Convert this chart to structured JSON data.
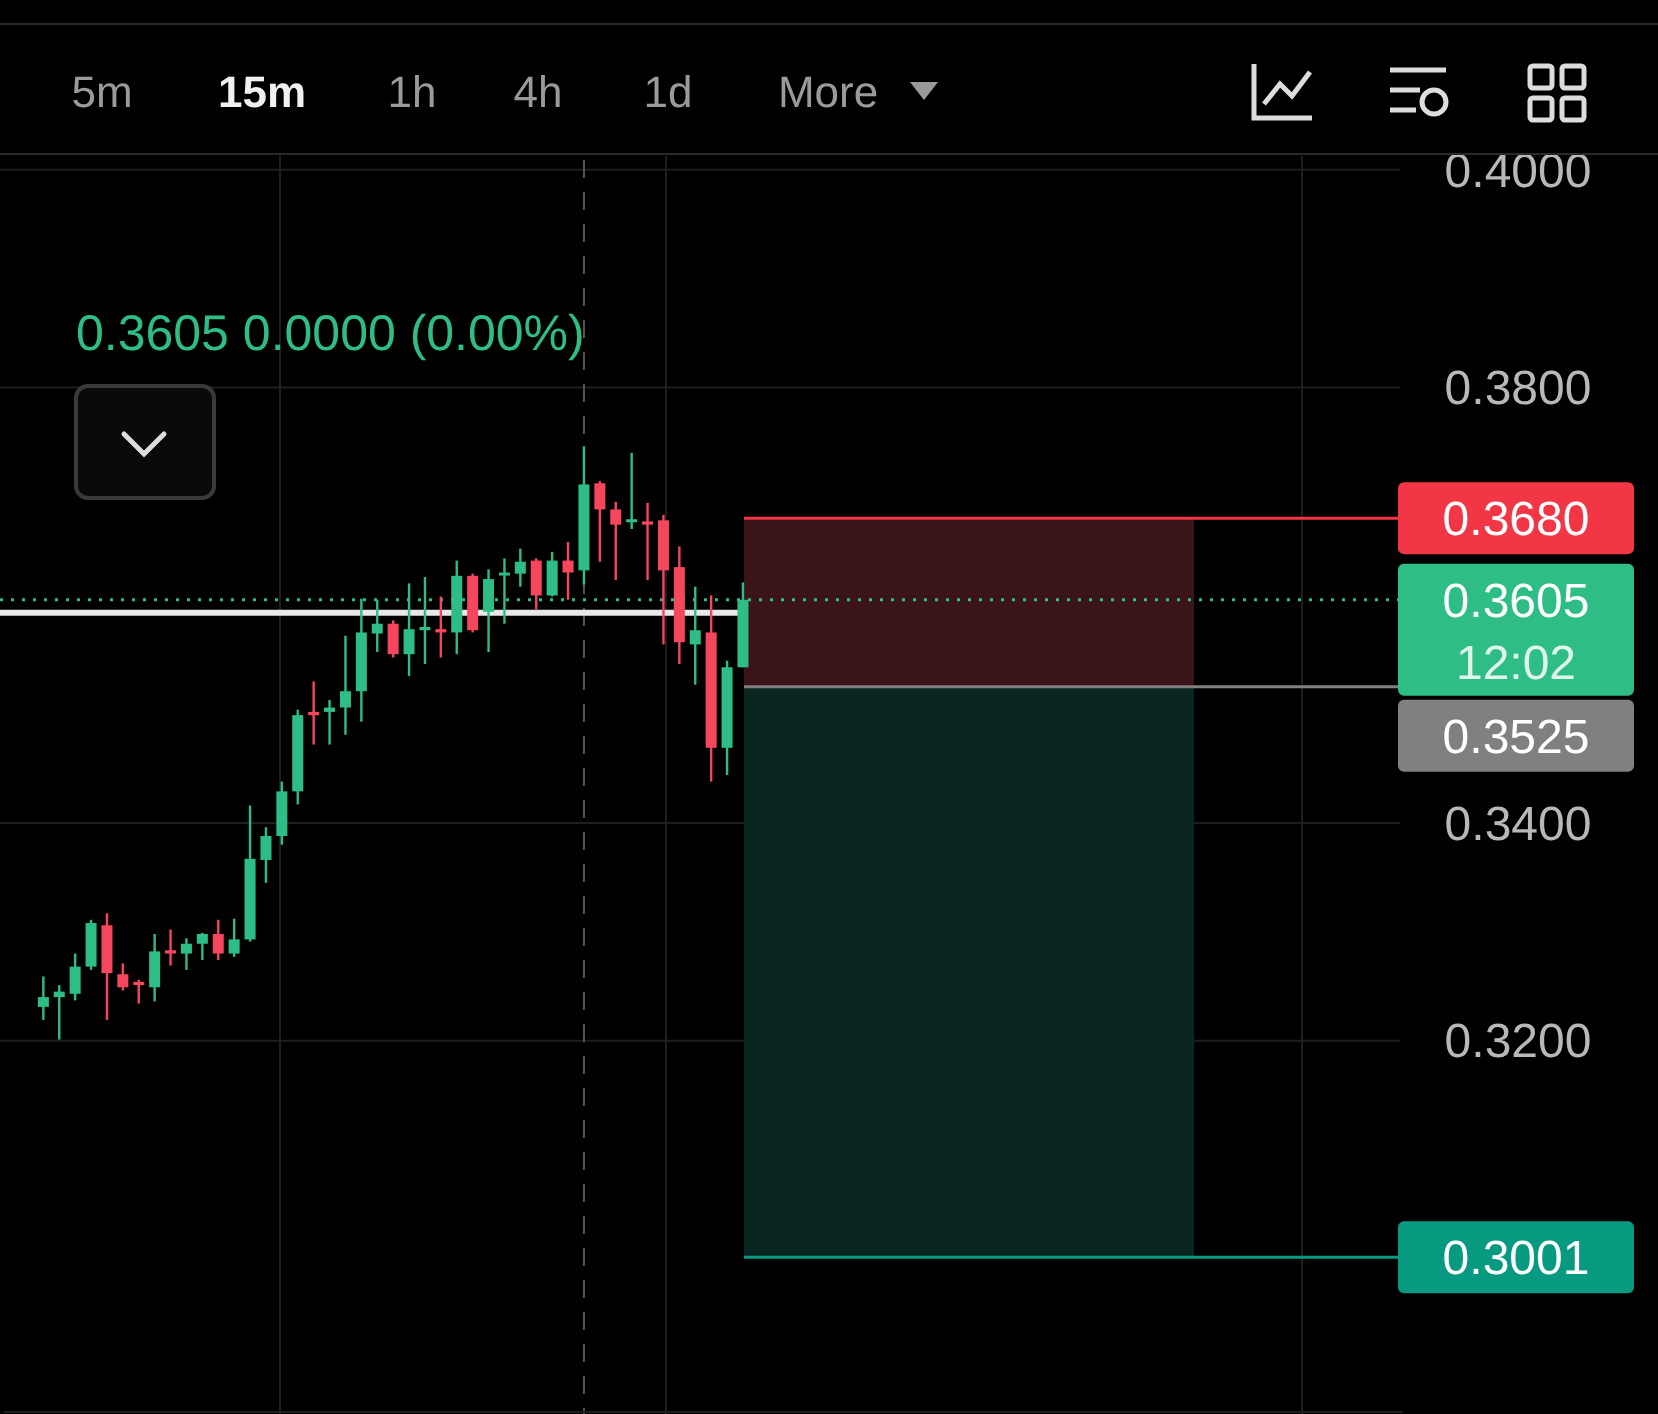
{
  "chart_data": {
    "type": "candlestick",
    "subtitle": "0.3605  0.0000 (0.00%)",
    "annotations": [
      "5m",
      "15m",
      "1h",
      "4h",
      "1d",
      "More",
      "12:02"
    ],
    "categories": [
      null,
      null,
      null,
      null,
      null,
      null,
      null,
      null,
      null,
      null,
      null,
      null,
      null,
      null,
      null,
      null,
      null,
      null,
      null,
      null,
      null,
      null,
      null,
      null,
      null,
      null,
      null,
      null,
      null,
      null,
      null,
      null,
      null,
      null,
      null,
      null,
      null,
      null,
      null,
      null,
      null,
      null,
      null,
      null,
      null,
      null,
      null,
      null,
      null,
      null,
      null,
      null,
      null,
      null,
      null,
      null,
      null,
      null,
      null,
      null,
      null,
      null,
      null,
      null,
      null,
      null,
      null,
      null,
      null,
      null,
      null,
      null,
      null,
      null,
      null,
      null,
      null,
      null,
      null,
      null,
      null,
      null,
      null,
      null,
      null,
      null,
      null,
      null
    ],
    "ohlc": [
      null,
      null,
      [
        0.3231,
        0.3259,
        0.3219,
        0.324
      ],
      [
        0.324,
        0.3251,
        0.3201,
        0.3245
      ],
      [
        0.3243,
        0.328,
        0.3237,
        0.3268
      ],
      [
        0.3268,
        0.3311,
        0.3265,
        0.3308
      ],
      [
        0.3306,
        0.3317,
        0.3219,
        0.3262
      ],
      [
        0.3261,
        0.3271,
        0.3246,
        0.3249
      ],
      [
        0.3254,
        0.3256,
        0.3234,
        0.3251
      ],
      [
        0.3249,
        0.3298,
        0.3236,
        0.3282
      ],
      [
        0.3283,
        0.3302,
        0.3269,
        0.328
      ],
      [
        0.328,
        0.3294,
        0.3265,
        0.3289
      ],
      [
        0.3289,
        0.3299,
        0.3274,
        0.3298
      ],
      [
        0.3298,
        0.3311,
        0.3274,
        0.328
      ],
      [
        0.328,
        0.3312,
        0.3277,
        0.3293
      ],
      [
        0.3293,
        0.3416,
        0.3291,
        0.3367
      ],
      [
        0.3366,
        0.3396,
        0.3345,
        0.3388
      ],
      [
        0.3388,
        0.3438,
        0.338,
        0.3429
      ],
      [
        0.3429,
        0.3504,
        0.3417,
        0.3499
      ],
      [
        0.3502,
        0.353,
        0.3472,
        0.3499
      ],
      [
        0.3502,
        0.3513,
        0.3472,
        0.3506
      ],
      [
        0.3506,
        0.3572,
        0.3481,
        0.3521
      ],
      [
        0.3521,
        0.3606,
        0.3493,
        0.3575
      ],
      [
        0.3574,
        0.3605,
        0.3557,
        0.3583
      ],
      [
        0.3583,
        0.3586,
        0.3552,
        0.3555
      ],
      [
        0.3555,
        0.362,
        0.3535,
        0.3578
      ],
      [
        0.3577,
        0.3626,
        0.3546,
        0.358
      ],
      [
        0.3578,
        0.3608,
        0.3552,
        0.3575
      ],
      [
        0.3575,
        0.3641,
        0.3555,
        0.3627
      ],
      [
        0.3627,
        0.3629,
        0.3575,
        0.3577
      ],
      [
        0.3594,
        0.3633,
        0.3557,
        0.3624
      ],
      [
        0.3628,
        0.3643,
        0.3583,
        0.363
      ],
      [
        0.3629,
        0.3652,
        0.3617,
        0.364
      ],
      [
        0.3641,
        0.3643,
        0.3596,
        0.3609
      ],
      [
        0.3609,
        0.3649,
        0.3608,
        0.3641
      ],
      [
        0.3641,
        0.3658,
        0.3605,
        0.363
      ],
      [
        0.3632,
        0.3746,
        0.3619,
        0.3711
      ],
      [
        0.3712,
        0.3714,
        0.364,
        0.3688
      ],
      [
        0.3688,
        0.3695,
        0.3623,
        0.3674
      ],
      [
        0.3677,
        0.374,
        0.367,
        0.3679
      ],
      [
        0.3677,
        0.3694,
        0.3623,
        0.3674
      ],
      [
        0.3678,
        0.3683,
        0.3564,
        0.3632
      ],
      [
        0.3635,
        0.3654,
        0.3546,
        0.3566
      ],
      [
        0.3564,
        0.3617,
        0.3527,
        0.3577
      ],
      [
        0.3575,
        0.3609,
        0.3438,
        0.3469
      ],
      [
        0.3469,
        0.3549,
        0.3444,
        0.3543
      ],
      [
        0.3543,
        0.3621,
        0.3543,
        0.3605
      ],
      null,
      null,
      null,
      null,
      null,
      null,
      null,
      null,
      null,
      null,
      null,
      null,
      null,
      null,
      null,
      null,
      null,
      null,
      null,
      null,
      null,
      null,
      null,
      null,
      null,
      null,
      null,
      null,
      null,
      null,
      null,
      null,
      null,
      null,
      null,
      null,
      null,
      null,
      null,
      null,
      null
    ],
    "ylim": [
      0.2857,
      0.4009
    ],
    "yticks": [
      {
        "value": 0.4,
        "label": "0.4000"
      },
      {
        "value": 0.38,
        "label": "0.3800"
      },
      {
        "value": 0.34,
        "label": "0.3400"
      },
      {
        "value": 0.32,
        "label": "0.3200"
      }
    ],
    "grid": true,
    "tick_labels": "y",
    "bands": [
      {
        "axis": "y",
        "from": 0.3525,
        "to": 0.368,
        "color": "#3a1418"
      },
      {
        "axis": "y",
        "from": 0.3001,
        "to": 0.3525,
        "color": "#0a2620"
      }
    ],
    "ref_lines": [
      {
        "axis": "y",
        "value": 0.3593,
        "color": "#e8e8e8",
        "line_style": "solid"
      },
      {
        "axis": "y",
        "value": 0.3605,
        "label": "0.3605",
        "color": "#2ebd85",
        "line_style": "dotted"
      },
      {
        "axis": "y",
        "value": 0.368,
        "label": "0.3680",
        "color": "#f23645",
        "line_style": "solid"
      },
      {
        "axis": "y",
        "value": 0.3525,
        "label": "0.3525",
        "color": "#808080",
        "line_style": "solid"
      },
      {
        "axis": "y",
        "value": 0.3001,
        "label": "0.3001",
        "color": "#089981",
        "line_style": "solid"
      }
    ]
  }
}
